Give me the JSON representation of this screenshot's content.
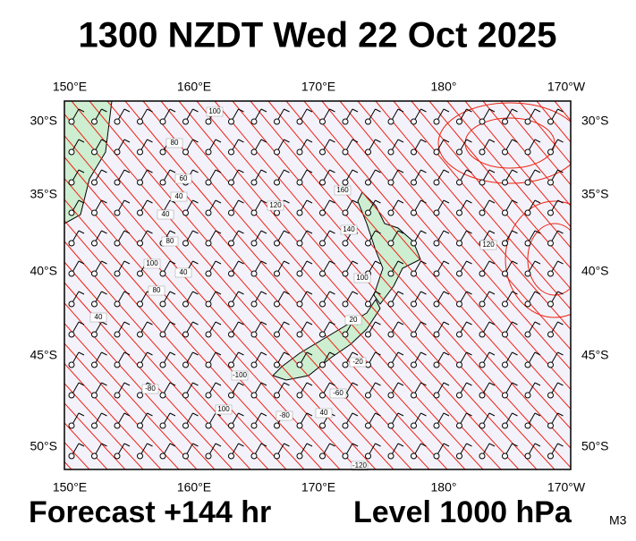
{
  "title": "1300 NZDT Wed 22 Oct 2025",
  "map": {
    "lon_labels": [
      "150°E",
      "160°E",
      "170°E",
      "180°",
      "170°W"
    ],
    "lat_labels": [
      "30°S",
      "35°S",
      "40°S",
      "45°S",
      "50°S"
    ],
    "contour_labels": [
      "100",
      "80",
      "60",
      "40",
      "40",
      "100",
      "40",
      "80",
      "120",
      "160",
      "140",
      "100",
      "120",
      "80",
      "40",
      "20",
      "-100",
      "-20",
      "100",
      "-80",
      "-60",
      "40",
      "-80",
      "-120"
    ]
  },
  "footer": {
    "forecast": "Forecast +144 hr",
    "level": "Level 1000 hPa",
    "model": "M3"
  }
}
